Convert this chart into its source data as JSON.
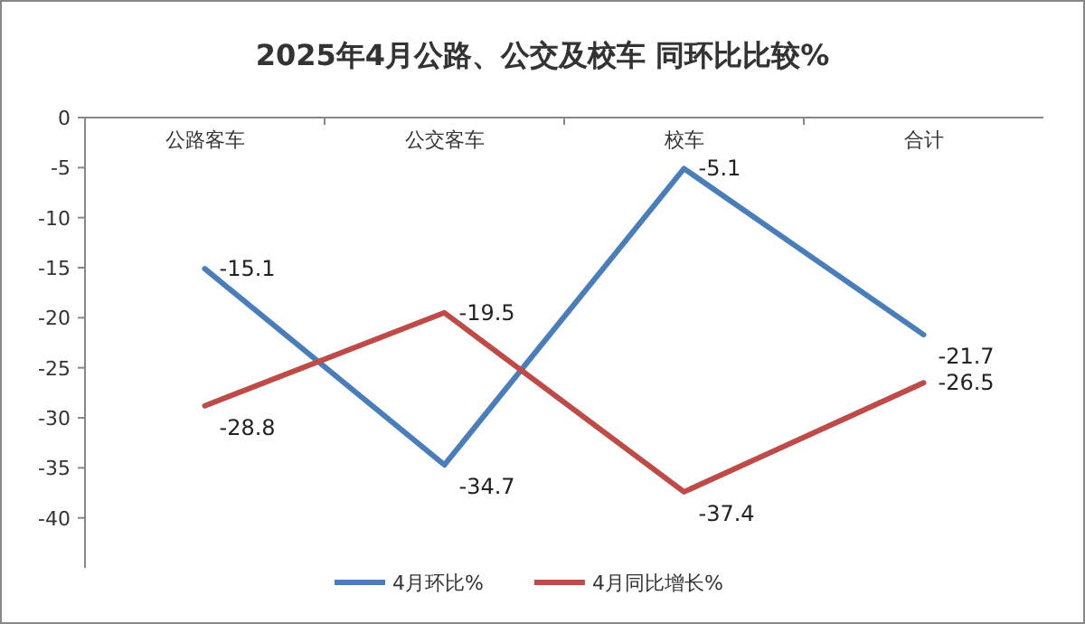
{
  "chart_data": {
    "type": "line",
    "title": "2025年4月公路、公交及校车 同环比比较%",
    "categories": [
      "公路客车",
      "公交客车",
      "校车",
      "合计"
    ],
    "series": [
      {
        "name": "4月环比%",
        "color": "#4a7ebb",
        "values": [
          -15.1,
          -34.7,
          -5.1,
          -21.7
        ]
      },
      {
        "name": "4月同比增长%",
        "color": "#be4b48",
        "values": [
          -28.8,
          -19.5,
          -37.4,
          -26.5
        ]
      }
    ],
    "ylim": [
      -45,
      0
    ],
    "yticks": [
      0,
      -5,
      -10,
      -15,
      -20,
      -25,
      -30,
      -35,
      -40
    ],
    "data_labels": true,
    "legend": "bottom",
    "grid": false,
    "marker": "none",
    "line_style": "solid"
  }
}
